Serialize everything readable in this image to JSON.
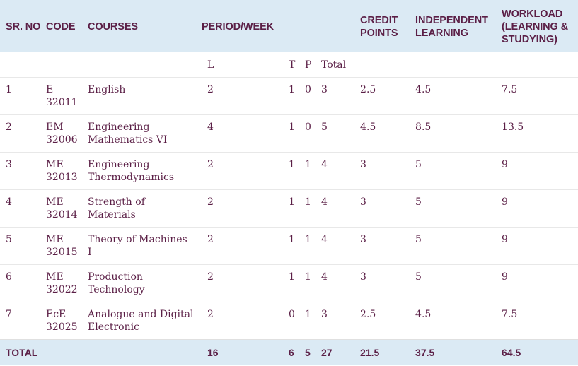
{
  "headers": {
    "sr_no": "SR. NO",
    "code": "CODE",
    "courses": "COURSES",
    "period_week": "PERIOD/WEEK",
    "credit_points_1": "CREDIT",
    "credit_points_2": "POINTS",
    "independent_1": "INDEPENDENT",
    "independent_2": "LEARNING",
    "workload_1": "WORKLOAD",
    "workload_2": "(LEARNING &",
    "workload_3": "STUDYING)"
  },
  "subheaders": {
    "l": "L",
    "t": "T",
    "p": "P",
    "total": "Total"
  },
  "rows": [
    {
      "sr": "1",
      "code1": "E",
      "code2": "32011",
      "course1": "English",
      "course2": "",
      "l": "2",
      "t": "1",
      "p": "0",
      "total": "3",
      "credit": "2.5",
      "independent": "4.5",
      "workload": "7.5"
    },
    {
      "sr": "2",
      "code1": "EM",
      "code2": "32006",
      "course1": "Engineering",
      "course2": "Mathematics VI",
      "l": "4",
      "t": "1",
      "p": "0",
      "total": "5",
      "credit": "4.5",
      "independent": "8.5",
      "workload": "13.5"
    },
    {
      "sr": "3",
      "code1": "ME",
      "code2": "32013",
      "course1": "Engineering",
      "course2": "Thermodynamics",
      "l": "2",
      "t": "1",
      "p": "1",
      "total": "4",
      "credit": "3",
      "independent": "5",
      "workload": "9"
    },
    {
      "sr": "4",
      "code1": "ME",
      "code2": "32014",
      "course1": "Strength of",
      "course2": "Materials",
      "l": "2",
      "t": "1",
      "p": "1",
      "total": "4",
      "credit": "3",
      "independent": "5",
      "workload": "9"
    },
    {
      "sr": "5",
      "code1": "ME",
      "code2": "32015",
      "course1": "Theory of Machines",
      "course2": "I",
      "l": "2",
      "t": "1",
      "p": "1",
      "total": "4",
      "credit": "3",
      "independent": "5",
      "workload": "9"
    },
    {
      "sr": "6",
      "code1": "ME",
      "code2": "32022",
      "course1": "Production",
      "course2": "Technology",
      "l": "2",
      "t": "1",
      "p": "1",
      "total": "4",
      "credit": "3",
      "independent": "5",
      "workload": "9"
    },
    {
      "sr": "7",
      "code1": "EcE",
      "code2": "32025",
      "course1": "Analogue and Digital",
      "course2": "Electronic",
      "l": "2",
      "t": "0",
      "p": "1",
      "total": "3",
      "credit": "2.5",
      "independent": "4.5",
      "workload": "7.5"
    }
  ],
  "totals": {
    "label": "TOTAL",
    "l": "16",
    "t": "6",
    "p": "5",
    "total": "27",
    "credit": "21.5",
    "independent": "37.5",
    "workload": "64.5"
  },
  "colors": {
    "text": "#5b1f46",
    "header_bg": "#dbeaf4",
    "row_border": "#e8e8e8"
  }
}
